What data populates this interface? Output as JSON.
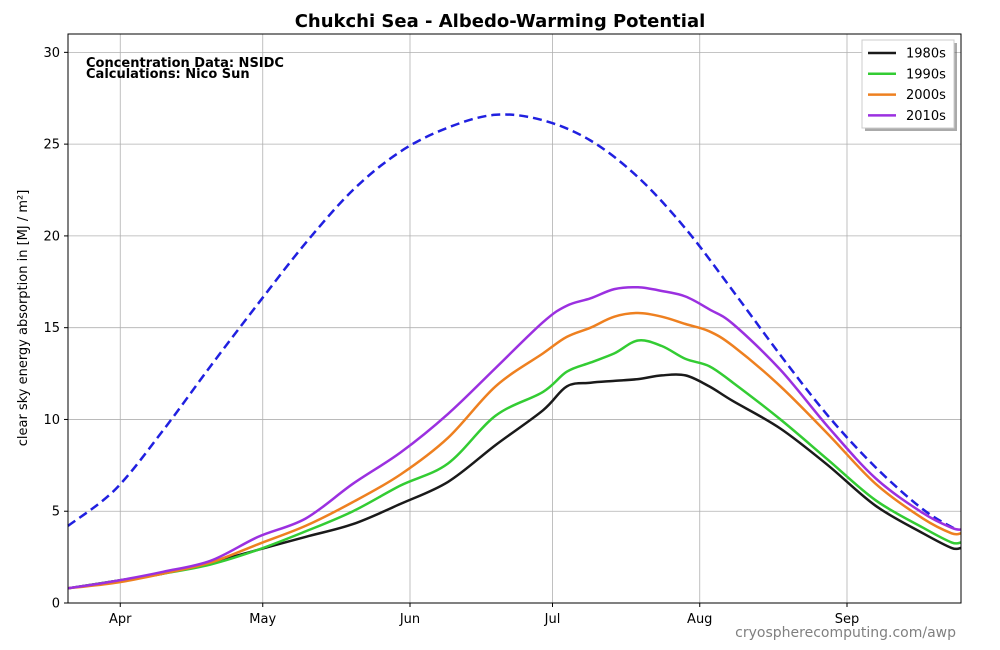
{
  "chart_data": {
    "type": "line",
    "title": "Chukchi Sea - Albedo-Warming Potential",
    "ylabel": "clear sky energy absorption in  [MJ / m²]",
    "notes": [
      "Concentration Data: NSIDC",
      "Calculations: Nico Sun"
    ],
    "credit": "cryospherecomputing.com/awp",
    "x_unit": "day-of-year",
    "xlim": [
      80,
      268
    ],
    "ylim": [
      0,
      31
    ],
    "x_ticks": [
      {
        "label": "Apr",
        "x": 91
      },
      {
        "label": "May",
        "x": 121
      },
      {
        "label": "Jun",
        "x": 152
      },
      {
        "label": "Jul",
        "x": 182
      },
      {
        "label": "Aug",
        "x": 213
      },
      {
        "label": "Sep",
        "x": 244
      }
    ],
    "y_ticks": [
      0,
      5,
      10,
      15,
      20,
      25,
      30
    ],
    "grid": true,
    "legend_position": "top-right",
    "reference": {
      "name": "",
      "color": "#2020e0",
      "style": "dashed",
      "x": [
        80,
        90,
        100,
        110,
        120,
        130,
        140,
        150,
        160,
        170,
        180,
        190,
        200,
        210,
        220,
        230,
        240,
        250,
        260,
        267
      ],
      "y": [
        4.2,
        6.2,
        9.4,
        12.9,
        16.3,
        19.6,
        22.5,
        24.6,
        25.9,
        26.6,
        26.3,
        25.2,
        23.2,
        20.4,
        17.0,
        13.5,
        10.2,
        7.4,
        5.1,
        4.0
      ]
    },
    "series": [
      {
        "name": "1980s",
        "color": "#1a1a1a",
        "x": [
          80,
          90,
          100,
          110,
          120,
          130,
          140,
          150,
          160,
          170,
          180,
          185,
          190,
          195,
          200,
          205,
          210,
          215,
          220,
          230,
          240,
          250,
          260,
          266,
          268
        ],
        "y": [
          0.8,
          1.2,
          1.6,
          2.2,
          2.9,
          3.6,
          4.3,
          5.4,
          6.6,
          8.6,
          10.5,
          11.8,
          12.0,
          12.1,
          12.2,
          12.4,
          12.4,
          11.8,
          11.0,
          9.5,
          7.5,
          5.3,
          3.8,
          3.0,
          3.0
        ]
      },
      {
        "name": "1990s",
        "color": "#33cc33",
        "x": [
          80,
          90,
          100,
          110,
          120,
          130,
          140,
          150,
          160,
          170,
          180,
          185,
          190,
          195,
          200,
          205,
          210,
          215,
          220,
          230,
          240,
          250,
          260,
          266,
          268
        ],
        "y": [
          0.8,
          1.2,
          1.6,
          2.1,
          2.9,
          3.9,
          5.0,
          6.4,
          7.6,
          10.2,
          11.5,
          12.6,
          13.1,
          13.6,
          14.3,
          14.0,
          13.3,
          12.9,
          12.0,
          10.0,
          7.8,
          5.6,
          4.1,
          3.3,
          3.3
        ]
      },
      {
        "name": "2000s",
        "color": "#ee8020",
        "x": [
          80,
          90,
          100,
          110,
          120,
          130,
          140,
          150,
          160,
          170,
          180,
          185,
          190,
          195,
          200,
          205,
          210,
          215,
          220,
          230,
          240,
          250,
          260,
          266,
          268
        ],
        "y": [
          0.8,
          1.1,
          1.6,
          2.2,
          3.2,
          4.2,
          5.5,
          7.0,
          9.0,
          11.8,
          13.6,
          14.5,
          15.0,
          15.6,
          15.8,
          15.6,
          15.2,
          14.8,
          14.0,
          11.8,
          9.2,
          6.5,
          4.6,
          3.8,
          3.8
        ]
      },
      {
        "name": "2010s",
        "color": "#9b30e0",
        "x": [
          80,
          90,
          100,
          110,
          120,
          130,
          140,
          150,
          160,
          170,
          180,
          185,
          190,
          195,
          200,
          205,
          210,
          215,
          220,
          230,
          240,
          250,
          260,
          266,
          268
        ],
        "y": [
          0.8,
          1.2,
          1.7,
          2.3,
          3.6,
          4.6,
          6.5,
          8.2,
          10.3,
          12.8,
          15.3,
          16.2,
          16.6,
          17.1,
          17.2,
          17.0,
          16.7,
          16.0,
          15.2,
          12.7,
          9.6,
          6.8,
          4.9,
          4.1,
          4.0
        ]
      }
    ]
  }
}
